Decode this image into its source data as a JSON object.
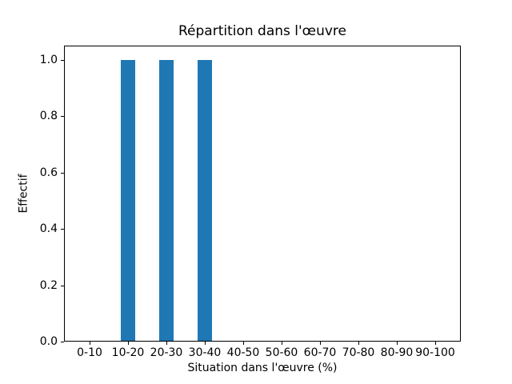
{
  "chart_data": {
    "type": "bar",
    "title": "Répartition dans l'œuvre",
    "xlabel": "Situation dans l'œuvre (%)",
    "ylabel": "Effectif",
    "categories": [
      "0-10",
      "10-20",
      "20-30",
      "30-40",
      "40-50",
      "50-60",
      "60-70",
      "70-80",
      "80-90",
      "90-100"
    ],
    "values": [
      0,
      1,
      1,
      1,
      0,
      0,
      0,
      0,
      0,
      0
    ],
    "ytick_labels": [
      "0.0",
      "0.2",
      "0.4",
      "0.6",
      "0.8",
      "1.0"
    ],
    "ylim": [
      0,
      1.05
    ],
    "bar_color": "#1f77b4",
    "frame_color": "#000000",
    "background_color": "#ffffff",
    "grid": false,
    "legend": null
  }
}
